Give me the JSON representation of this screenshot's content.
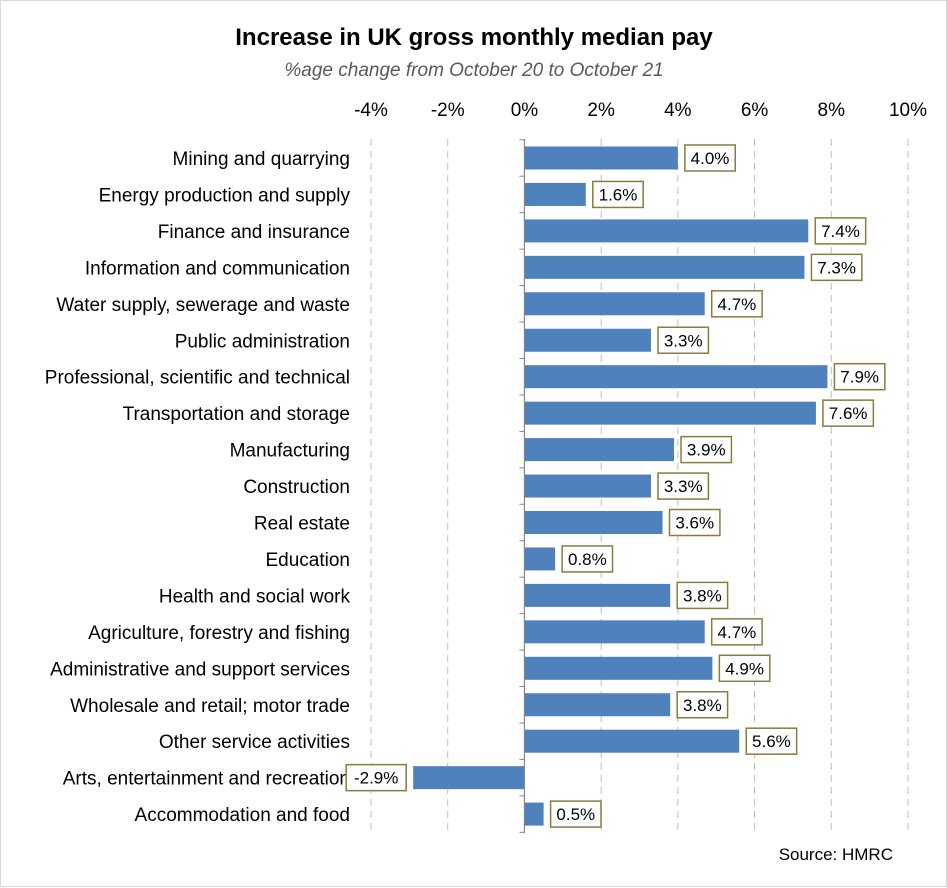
{
  "chart_data": {
    "type": "bar",
    "orientation": "horizontal",
    "title": "Increase in UK gross monthly median pay",
    "subtitle": "%age change from October 20 to October 21",
    "source": "Source: HMRC",
    "xlim": [
      -4,
      10
    ],
    "x_ticks": [
      -4,
      -2,
      0,
      2,
      4,
      6,
      8,
      10
    ],
    "x_tick_labels": [
      "-4%",
      "-2%",
      "0%",
      "2%",
      "4%",
      "6%",
      "8%",
      "10%"
    ],
    "x_axis_position": "top",
    "grid": "vertical dashed",
    "categories": [
      "Mining and quarrying",
      "Energy production and supply",
      "Finance and insurance",
      "Information and communication",
      "Water supply, sewerage and waste",
      "Public administration",
      "Professional, scientific and technical",
      "Transportation and storage",
      "Manufacturing",
      "Construction",
      "Real estate",
      "Education",
      "Health and social work",
      "Agriculture, forestry and fishing",
      "Administrative and support services",
      "Wholesale and retail; motor trade",
      "Other service activities",
      "Arts, entertainment and recreation",
      "Accommodation and food"
    ],
    "values": [
      4.0,
      1.6,
      7.4,
      7.3,
      4.7,
      3.3,
      7.9,
      7.6,
      3.9,
      3.3,
      3.6,
      0.8,
      3.8,
      4.7,
      4.9,
      3.8,
      5.6,
      -2.9,
      0.5
    ],
    "data_labels": [
      "4.0%",
      "1.6%",
      "7.4%",
      "7.3%",
      "4.7%",
      "3.3%",
      "7.9%",
      "7.6%",
      "3.9%",
      "3.3%",
      "3.6%",
      "0.8%",
      "3.8%",
      "4.7%",
      "4.9%",
      "3.8%",
      "5.6%",
      "-2.9%",
      "0.5%"
    ],
    "colors": {
      "bar": "#4f81bd",
      "label_border": "#8c7a3e",
      "grid": "#bfbfbf",
      "axis": "#868686"
    }
  }
}
